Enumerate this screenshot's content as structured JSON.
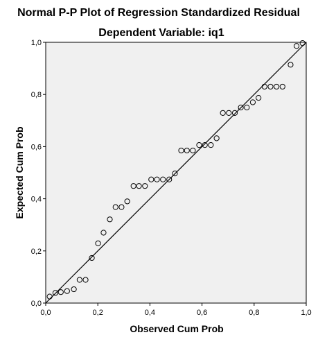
{
  "chart_data": {
    "type": "scatter",
    "title": "Normal P-P Plot of Regression Standardized Residual",
    "subtitle": "Dependent Variable: iq1",
    "xlabel": "Observed Cum Prob",
    "ylabel": "Expected Cum Prob",
    "xlim": [
      0,
      1
    ],
    "ylim": [
      0,
      1
    ],
    "xticks": [
      "0,0",
      "0,2",
      "0,4",
      "0,6",
      "0,8",
      "1,0"
    ],
    "yticks": [
      "0,0",
      "0,2",
      "0,4",
      "0,6",
      "0,8",
      "1,0"
    ],
    "reference_line": [
      [
        0,
        0
      ],
      [
        1,
        1
      ]
    ],
    "grid": false,
    "colors": {
      "plot_background": "#f0f0f0",
      "frame": "#000000",
      "markers": "#000000"
    },
    "points": [
      [
        0.015,
        0.025
      ],
      [
        0.037,
        0.039
      ],
      [
        0.058,
        0.042
      ],
      [
        0.082,
        0.046
      ],
      [
        0.108,
        0.053
      ],
      [
        0.13,
        0.089
      ],
      [
        0.153,
        0.089
      ],
      [
        0.177,
        0.173
      ],
      [
        0.201,
        0.229
      ],
      [
        0.222,
        0.27
      ],
      [
        0.246,
        0.321
      ],
      [
        0.268,
        0.368
      ],
      [
        0.291,
        0.368
      ],
      [
        0.313,
        0.39
      ],
      [
        0.337,
        0.449
      ],
      [
        0.358,
        0.449
      ],
      [
        0.381,
        0.449
      ],
      [
        0.405,
        0.474
      ],
      [
        0.427,
        0.474
      ],
      [
        0.45,
        0.474
      ],
      [
        0.474,
        0.474
      ],
      [
        0.496,
        0.497
      ],
      [
        0.52,
        0.585
      ],
      [
        0.542,
        0.585
      ],
      [
        0.565,
        0.585
      ],
      [
        0.589,
        0.606
      ],
      [
        0.611,
        0.606
      ],
      [
        0.634,
        0.606
      ],
      [
        0.656,
        0.632
      ],
      [
        0.68,
        0.729
      ],
      [
        0.703,
        0.729
      ],
      [
        0.726,
        0.729
      ],
      [
        0.749,
        0.75
      ],
      [
        0.772,
        0.75
      ],
      [
        0.795,
        0.77
      ],
      [
        0.817,
        0.787
      ],
      [
        0.84,
        0.83
      ],
      [
        0.863,
        0.83
      ],
      [
        0.886,
        0.83
      ],
      [
        0.909,
        0.83
      ],
      [
        0.94,
        0.914
      ],
      [
        0.963,
        0.986
      ],
      [
        0.986,
        0.997
      ]
    ]
  }
}
